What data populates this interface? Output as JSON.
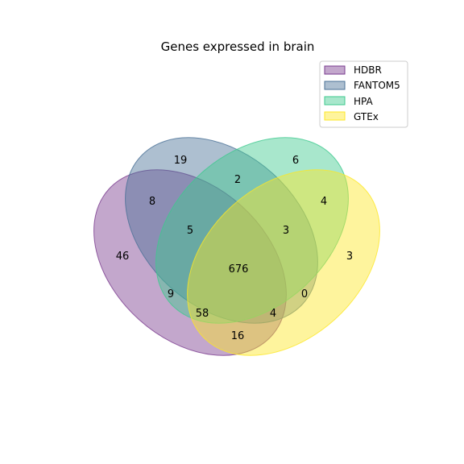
{
  "title": "Genes expressed in brain",
  "sets": [
    {
      "name": "HDBR",
      "color": "#7a3b8f"
    },
    {
      "name": "FANTOM5",
      "color": "#4a7196"
    },
    {
      "name": "HPA",
      "color": "#3ec98e"
    },
    {
      "name": "GTEx",
      "color": "#fde725"
    }
  ],
  "regions": [
    {
      "sets": [
        "HDBR"
      ],
      "count": "46"
    },
    {
      "sets": [
        "FANTOM5"
      ],
      "count": "19"
    },
    {
      "sets": [
        "HPA"
      ],
      "count": "6"
    },
    {
      "sets": [
        "GTEx"
      ],
      "count": "3"
    },
    {
      "sets": [
        "HDBR",
        "FANTOM5"
      ],
      "count": "8"
    },
    {
      "sets": [
        "FANTOM5",
        "HPA"
      ],
      "count": "2"
    },
    {
      "sets": [
        "HPA",
        "GTEx"
      ],
      "count": "4"
    },
    {
      "sets": [
        "HDBR",
        "GTEx"
      ],
      "count": "16"
    },
    {
      "sets": [
        "HDBR",
        "FANTOM5",
        "HPA"
      ],
      "count": "5"
    },
    {
      "sets": [
        "FANTOM5",
        "HPA",
        "GTEx"
      ],
      "count": "3"
    },
    {
      "sets": [
        "HDBR",
        "HPA"
      ],
      "count": "9"
    },
    {
      "sets": [
        "FANTOM5",
        "GTEx"
      ],
      "count": "0"
    },
    {
      "sets": [
        "HDBR",
        "HPA",
        "GTEx"
      ],
      "count": "58"
    },
    {
      "sets": [
        "HDBR",
        "FANTOM5",
        "GTEx"
      ],
      "count": "4"
    },
    {
      "sets": [
        "HDBR",
        "FANTOM5",
        "HPA",
        "GTEx"
      ],
      "count": "676"
    }
  ]
}
